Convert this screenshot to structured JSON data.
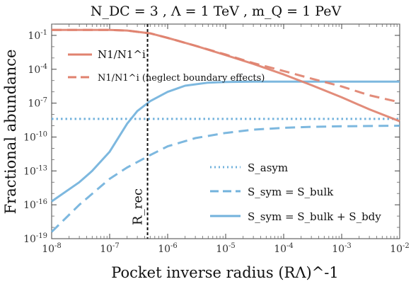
{
  "chart_data": {
    "type": "line",
    "title": "N_DC = 3 ,  Λ = 1 TeV ,  m_Q = 1 PeV",
    "xlabel": "Pocket inverse radius (RΛ)^-1",
    "ylabel": "Fractional abundance",
    "xscale": "log",
    "yscale": "log",
    "xlim": [
      1e-08,
      0.01
    ],
    "ylim": [
      1e-19,
      1
    ],
    "x_ticks": [
      "10^-8",
      "10^-7",
      "10^-6",
      "10^-5",
      "10^-4",
      "10^-3",
      "10^-2"
    ],
    "y_ticks": [
      "10^-19",
      "10^-16",
      "10^-13",
      "10^-10",
      "10^-7",
      "10^-4",
      "10^-1"
    ],
    "grid": false,
    "annotation": {
      "label": "R_rec",
      "x": 4.5e-07
    },
    "colors": {
      "red": "#e0826f",
      "blue": "#72b2dc"
    },
    "series": [
      {
        "name": "N1/N1^i",
        "color": "red",
        "style": "solid",
        "points": [
          [
            1e-08,
            0.3
          ],
          [
            1e-07,
            0.3
          ],
          [
            2e-07,
            0.27
          ],
          [
            5e-07,
            0.15
          ],
          [
            1e-06,
            0.06
          ],
          [
            3e-06,
            0.012
          ],
          [
            1e-05,
            0.0018
          ],
          [
            3e-05,
            0.0003
          ],
          [
            0.0001,
            3.5e-05
          ],
          [
            0.0003,
            4e-06
          ],
          [
            0.001,
            3.3e-07
          ],
          [
            0.003,
            2.8e-08
          ],
          [
            0.01,
            2.5e-09
          ]
        ]
      },
      {
        "name": "N1/N1^i (neglect boundary effects)",
        "color": "red",
        "style": "dashed",
        "points": [
          [
            1e-08,
            0.3
          ],
          [
            1e-07,
            0.3
          ],
          [
            2e-07,
            0.27
          ],
          [
            5e-07,
            0.15
          ],
          [
            1e-06,
            0.06
          ],
          [
            3e-06,
            0.012
          ],
          [
            1e-05,
            0.002
          ],
          [
            3e-05,
            0.00035
          ],
          [
            0.0001,
            7e-05
          ],
          [
            0.0003,
            1.5e-05
          ],
          [
            0.001,
            3e-06
          ],
          [
            0.003,
            5e-07
          ],
          [
            0.01,
            1.2e-07
          ]
        ]
      },
      {
        "name": "S_asym",
        "color": "blue",
        "style": "dotted",
        "points": [
          [
            1e-08,
            4e-09
          ],
          [
            0.01,
            4e-09
          ]
        ]
      },
      {
        "name": "S_sym = S_bulk",
        "color": "blue",
        "style": "dashed",
        "points": [
          [
            1e-08,
            4e-19
          ],
          [
            3e-08,
            1e-16
          ],
          [
            1e-07,
            2e-14
          ],
          [
            2e-07,
            2e-13
          ],
          [
            5e-07,
            2.5e-12
          ],
          [
            1e-06,
            1.5e-11
          ],
          [
            3e-06,
            8e-11
          ],
          [
            1e-05,
            2.3e-10
          ],
          [
            3e-05,
            4.5e-10
          ],
          [
            0.0001,
            6.5e-10
          ],
          [
            0.0003,
            8e-10
          ],
          [
            0.001,
            9e-10
          ],
          [
            0.01,
            1e-09
          ]
        ]
      },
      {
        "name": "S_sym = S_bulk + S_bdy",
        "color": "blue",
        "style": "solid",
        "points": [
          [
            1e-08,
            2e-16
          ],
          [
            3e-08,
            1e-14
          ],
          [
            5e-08,
            1e-13
          ],
          [
            1e-07,
            5e-12
          ],
          [
            2e-07,
            1.5e-09
          ],
          [
            3e-07,
            2e-08
          ],
          [
            5e-07,
            1.5e-07
          ],
          [
            1e-06,
            1e-06
          ],
          [
            2e-06,
            3.5e-06
          ],
          [
            5e-06,
            6.5e-06
          ],
          [
            1e-05,
            7.5e-06
          ],
          [
            3e-05,
            8e-06
          ],
          [
            0.0001,
            8e-06
          ],
          [
            0.01,
            8e-06
          ]
        ]
      }
    ]
  }
}
